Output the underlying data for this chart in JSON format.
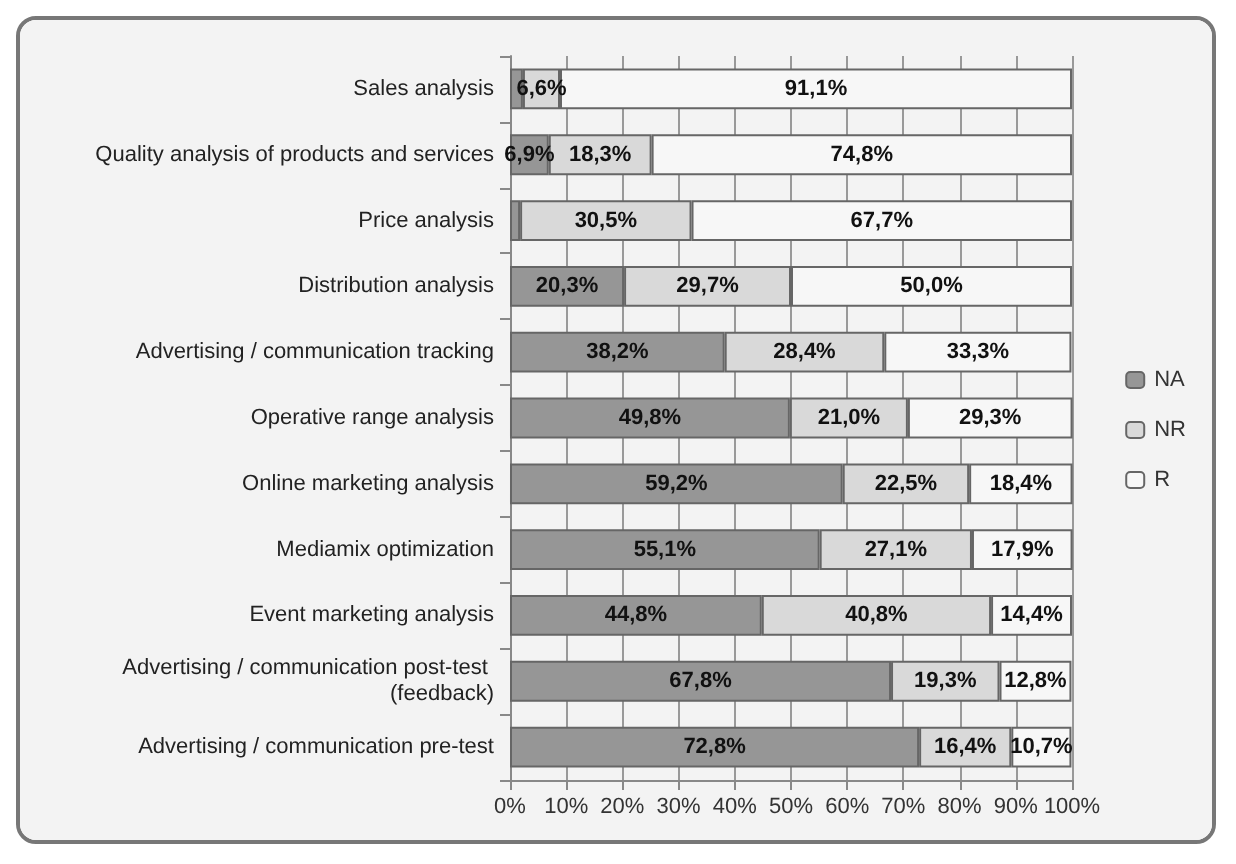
{
  "chart_data": {
    "type": "bar",
    "orientation": "horizontal",
    "stacked": true,
    "categories": [
      "Sales analysis",
      "Quality analysis of products and services",
      "Price analysis",
      "Distribution analysis",
      "Advertising / communication tracking",
      "Operative range analysis",
      "Online marketing analysis",
      "Mediamix optimization",
      "Event marketing analysis",
      "Advertising / communication post-test (feedback)",
      "Advertising / communication pre-test"
    ],
    "series": [
      {
        "name": "NA",
        "color": "#969696",
        "values": [
          2.3,
          6.9,
          1.8,
          20.3,
          38.2,
          49.8,
          59.2,
          55.1,
          44.8,
          67.8,
          72.8
        ],
        "value_labels": [
          null,
          "6,9%",
          null,
          "20,3%",
          "38,2%",
          "49,8%",
          "59,2%",
          "55,1%",
          "44,8%",
          "67,8%",
          "72,8%"
        ]
      },
      {
        "name": "NR",
        "color": "#d9d9d9",
        "values": [
          6.6,
          18.3,
          30.5,
          29.7,
          28.4,
          21.0,
          22.5,
          27.1,
          40.8,
          19.3,
          16.4
        ],
        "value_labels": [
          "6,6%",
          "18,3%",
          "30,5%",
          "29,7%",
          "28,4%",
          "21,0%",
          "22,5%",
          "27,1%",
          "40,8%",
          "19,3%",
          "16,4%"
        ]
      },
      {
        "name": "R",
        "color": "#f7f7f7",
        "values": [
          91.1,
          74.8,
          67.7,
          50.0,
          33.3,
          29.3,
          18.4,
          17.9,
          14.4,
          12.8,
          10.7
        ],
        "value_labels": [
          "91,1%",
          "74,8%",
          "67,7%",
          "50,0%",
          "33,3%",
          "29,3%",
          "18,4%",
          "17,9%",
          "14,4%",
          "12,8%",
          "10,7%"
        ]
      }
    ],
    "xlim": [
      0,
      100
    ],
    "xticks": [
      {
        "value": 0,
        "label": "0%"
      },
      {
        "value": 10,
        "label": "10%"
      },
      {
        "value": 20,
        "label": "20%"
      },
      {
        "value": 30,
        "label": "30%"
      },
      {
        "value": 40,
        "label": "40%"
      },
      {
        "value": 50,
        "label": "50%"
      },
      {
        "value": 60,
        "label": "60%"
      },
      {
        "value": 70,
        "label": "70%"
      },
      {
        "value": 80,
        "label": "80%"
      },
      {
        "value": 90,
        "label": "90%"
      },
      {
        "value": 100,
        "label": "100%"
      }
    ],
    "grid": "x",
    "legend": "right"
  }
}
